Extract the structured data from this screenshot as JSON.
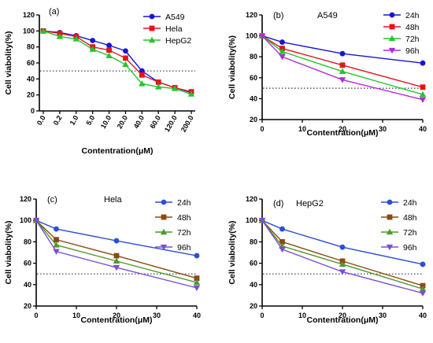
{
  "chart_data": [
    {
      "type": "line",
      "panel_label": "(a)",
      "title": "",
      "xlabel": "Contentration(μM)",
      "ylabel": "Cell viabolity(%)",
      "categories": [
        "0.0",
        "0.2",
        "1.0",
        "5.0",
        "10.0",
        "20.0",
        "40.0",
        "60.0",
        "120.0",
        "200.0"
      ],
      "ylim": [
        0,
        120
      ],
      "yticks": [
        0,
        20,
        40,
        60,
        80,
        100,
        120
      ],
      "threshold": 50,
      "legend_position": "top-right",
      "series": [
        {
          "name": "A549",
          "color": "#1515d6",
          "marker": "circle",
          "values": [
            100,
            98,
            94,
            88,
            82,
            75,
            50,
            36,
            29,
            23
          ]
        },
        {
          "name": "Hela",
          "color": "#e3141b",
          "marker": "square",
          "values": [
            100,
            97,
            93,
            80,
            76,
            66,
            45,
            36,
            29,
            24
          ]
        },
        {
          "name": "HepG2",
          "color": "#22c62c",
          "marker": "triangle-up",
          "values": [
            100,
            93,
            90,
            77,
            69,
            58,
            34,
            30,
            28,
            21
          ]
        }
      ]
    },
    {
      "type": "line",
      "panel_label": "(b)",
      "title": "A549",
      "xlabel": "Contentration(μM)",
      "ylabel": "Cell viabolity(%)",
      "x": [
        0,
        5,
        20,
        40
      ],
      "xlim": [
        0,
        40
      ],
      "xticks": [
        0,
        10,
        20,
        30,
        40
      ],
      "ylim": [
        20,
        120
      ],
      "yticks": [
        20,
        40,
        60,
        80,
        100,
        120
      ],
      "threshold": 50,
      "legend_position": "top-right",
      "series": [
        {
          "name": "24h",
          "color": "#1515d6",
          "marker": "circle",
          "values": [
            100,
            94,
            83,
            74
          ]
        },
        {
          "name": "48h",
          "color": "#e3141b",
          "marker": "square",
          "values": [
            100,
            88,
            72,
            51
          ]
        },
        {
          "name": "72h",
          "color": "#22c62c",
          "marker": "triangle-up",
          "values": [
            100,
            85,
            66,
            44
          ]
        },
        {
          "name": "96h",
          "color": "#b02bd6",
          "marker": "triangle-down",
          "values": [
            100,
            80,
            58,
            39
          ]
        }
      ]
    },
    {
      "type": "line",
      "panel_label": "(c)",
      "title": "Hela",
      "xlabel": "Contentration(μM)",
      "ylabel": "Cell viabolity(%)",
      "x": [
        0,
        5,
        20,
        40
      ],
      "xlim": [
        0,
        40
      ],
      "xticks": [
        0,
        10,
        20,
        30,
        40
      ],
      "ylim": [
        20,
        120
      ],
      "yticks": [
        20,
        40,
        60,
        80,
        100,
        120
      ],
      "threshold": 50,
      "legend_position": "top-right",
      "series": [
        {
          "name": "24h",
          "color": "#2b4fd6",
          "marker": "circle",
          "values": [
            100,
            92,
            81,
            67
          ]
        },
        {
          "name": "48h",
          "color": "#8a4a12",
          "marker": "square",
          "values": [
            100,
            82,
            67,
            46
          ]
        },
        {
          "name": "72h",
          "color": "#4e9a2a",
          "marker": "triangle-up",
          "values": [
            100,
            77,
            62,
            42
          ]
        },
        {
          "name": "96h",
          "color": "#7a4fd6",
          "marker": "triangle-down",
          "values": [
            100,
            71,
            56,
            37
          ]
        }
      ]
    },
    {
      "type": "line",
      "panel_label": "(d)",
      "title": "HepG2",
      "xlabel": "Contentration(μM)",
      "ylabel": "Cell viabolity(%)",
      "x": [
        0,
        5,
        20,
        40
      ],
      "xlim": [
        0,
        40
      ],
      "xticks": [
        0,
        10,
        20,
        30,
        40
      ],
      "ylim": [
        20,
        120
      ],
      "yticks": [
        20,
        40,
        60,
        80,
        100,
        120
      ],
      "threshold": 50,
      "legend_position": "top-right",
      "series": [
        {
          "name": "24h",
          "color": "#2b4fd6",
          "marker": "circle",
          "values": [
            100,
            92,
            75,
            59
          ]
        },
        {
          "name": "48h",
          "color": "#8a4a12",
          "marker": "square",
          "values": [
            100,
            80,
            62,
            39
          ]
        },
        {
          "name": "72h",
          "color": "#4e9a2a",
          "marker": "triangle-up",
          "values": [
            100,
            76,
            59,
            36
          ]
        },
        {
          "name": "96h",
          "color": "#7a4fd6",
          "marker": "triangle-down",
          "values": [
            100,
            73,
            52,
            32
          ]
        }
      ]
    }
  ]
}
